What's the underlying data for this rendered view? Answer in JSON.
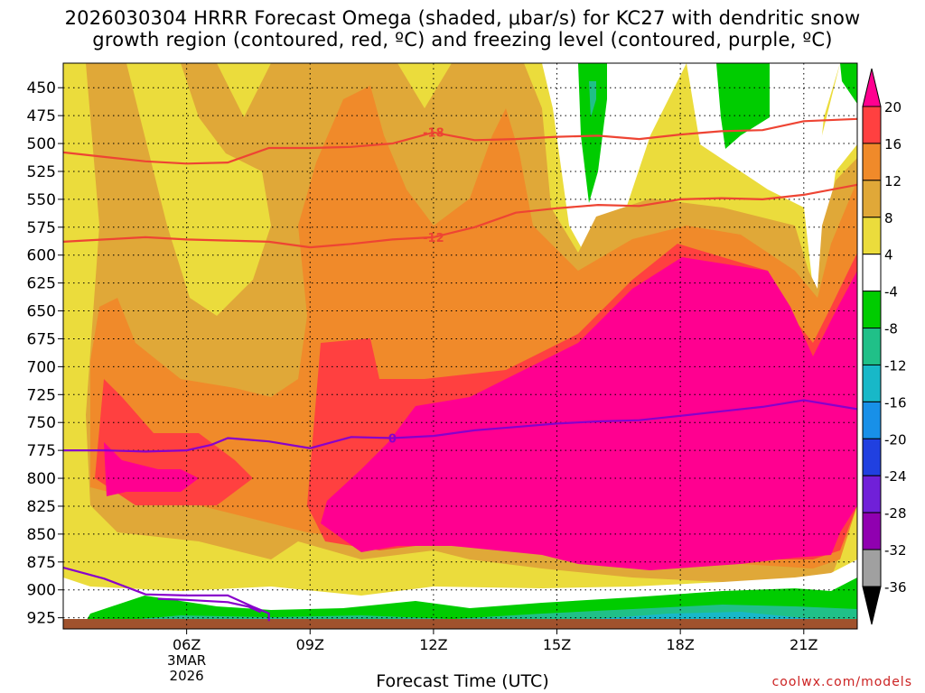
{
  "title_line1": "2026030304 HRRR Forecast Omega (shaded, μbar/s) for KC27 with dendritic snow",
  "title_line2": "growth region (contoured, red, ºC) and freezing level (contoured, purple, ºC)",
  "credit": "coolwx.com/models",
  "chart_data": {
    "type": "heatmap",
    "title": "2026030304 HRRR Forecast Omega (shaded, μbar/s) for KC27 with dendritic snow growth region (contoured, red, ºC) and freezing level (contoured, purple, ºC)",
    "xlabel": "Forecast Time (UTC)",
    "ylabel": "",
    "y_ticks": [
      450,
      475,
      500,
      525,
      550,
      575,
      600,
      625,
      650,
      675,
      700,
      725,
      750,
      775,
      800,
      825,
      850,
      875,
      900,
      925
    ],
    "ylim": [
      935,
      428
    ],
    "xlim": [
      3,
      22.3
    ],
    "x_ticks": [
      {
        "value": 6,
        "label": "06Z",
        "sub1": "3MAR",
        "sub2": "2026"
      },
      {
        "value": 9,
        "label": "09Z"
      },
      {
        "value": 12,
        "label": "12Z"
      },
      {
        "value": 15,
        "label": "15Z"
      },
      {
        "value": 18,
        "label": "18Z"
      },
      {
        "value": 21,
        "label": "21Z"
      }
    ],
    "colorbar": {
      "labels": [
        "20",
        "16",
        "12",
        "8",
        "4",
        "-4",
        "-8",
        "-12",
        "-16",
        "-20",
        "-24",
        "-28",
        "-32",
        "-36"
      ],
      "colors": [
        "#ff0090",
        "#ff4040",
        "#f08a2a",
        "#e0a838",
        "#ebdc3c",
        "#ffffff",
        "#00cc00",
        "#20c088",
        "#18b8c8",
        "#1890e8",
        "#2040e0",
        "#7020d8",
        "#9000b0",
        "#a0a0a0",
        "#000000"
      ]
    },
    "contours": [
      {
        "label": "-18",
        "color": "#ee4433",
        "points": [
          [
            3,
            508
          ],
          [
            4,
            512
          ],
          [
            5,
            516
          ],
          [
            6,
            518
          ],
          [
            7,
            517
          ],
          [
            8,
            504
          ],
          [
            9,
            504
          ],
          [
            10,
            503
          ],
          [
            11,
            500
          ],
          [
            12,
            490
          ],
          [
            13,
            497
          ],
          [
            14,
            496
          ],
          [
            15,
            494
          ],
          [
            16,
            493
          ],
          [
            17,
            496
          ],
          [
            18,
            492
          ],
          [
            19,
            489
          ],
          [
            20,
            488
          ],
          [
            21,
            480
          ],
          [
            22.3,
            478
          ]
        ]
      },
      {
        "label": "-12",
        "color": "#ee4433",
        "points": [
          [
            3,
            588
          ],
          [
            4,
            586
          ],
          [
            5,
            584
          ],
          [
            6,
            586
          ],
          [
            7,
            587
          ],
          [
            8,
            588
          ],
          [
            9,
            593
          ],
          [
            10,
            590
          ],
          [
            11,
            586
          ],
          [
            12,
            584
          ],
          [
            13,
            575
          ],
          [
            14,
            562
          ],
          [
            15,
            558
          ],
          [
            16,
            555
          ],
          [
            17,
            556
          ],
          [
            18,
            550
          ],
          [
            19,
            549
          ],
          [
            20,
            550
          ],
          [
            21,
            546
          ],
          [
            22.3,
            537
          ]
        ]
      },
      {
        "label": "0",
        "color": "#8800cc",
        "points": [
          [
            3,
            775
          ],
          [
            4,
            775
          ],
          [
            5,
            776
          ],
          [
            6,
            775
          ],
          [
            6.6,
            770
          ],
          [
            7,
            764
          ],
          [
            8,
            767
          ],
          [
            9,
            773
          ],
          [
            10,
            763
          ],
          [
            11,
            764
          ],
          [
            12,
            762
          ],
          [
            13,
            757
          ],
          [
            14,
            754
          ],
          [
            15,
            751
          ],
          [
            16,
            749
          ],
          [
            17,
            748
          ],
          [
            18,
            744
          ],
          [
            19,
            740
          ],
          [
            20,
            736
          ],
          [
            21,
            730
          ],
          [
            22.3,
            738
          ]
        ]
      },
      {
        "label": "",
        "color": "#8800cc",
        "points": [
          [
            3,
            880
          ],
          [
            4,
            890
          ],
          [
            5,
            904
          ],
          [
            6,
            905
          ],
          [
            7,
            905
          ],
          [
            7.6,
            915
          ],
          [
            8,
            921
          ],
          [
            8,
            928
          ]
        ]
      },
      {
        "label": "",
        "color": "#8800cc",
        "points": [
          [
            5.3,
            908
          ],
          [
            6,
            909
          ],
          [
            7,
            911
          ],
          [
            7.5,
            915
          ],
          [
            7.8,
            920
          ]
        ]
      }
    ],
    "ground_level_mb": 930
  }
}
